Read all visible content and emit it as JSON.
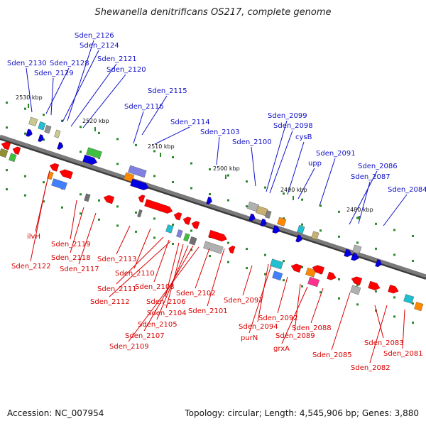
{
  "title": "Shewanella denitrificans OS217, complete genome",
  "accession": "Accession: NC_007954",
  "summary": "Topology: circular; Length: 4,545,906 bp; Genes: 3,880",
  "ruler": [
    "2530 kbp",
    "2520 kbp",
    "2510 kbp",
    "2500 kbp",
    "2490 kbp",
    "2480 kbp"
  ],
  "colors": {
    "label_top": "#1010c8",
    "label_bottom": "#d80000",
    "backbone": "#7a7a7a"
  },
  "top_labels": [
    {
      "text": "Sden_2126"
    },
    {
      "text": "Sden_2124"
    },
    {
      "text": "Sden_2130"
    },
    {
      "text": "Sden_2128"
    },
    {
      "text": "Sden_2121"
    },
    {
      "text": "Sden_2129"
    },
    {
      "text": "Sden_2120"
    },
    {
      "text": "Sden_2115"
    },
    {
      "text": "Sden_2116"
    },
    {
      "text": "Sden_2114"
    },
    {
      "text": "Sden_2103"
    },
    {
      "text": "Sden_2099"
    },
    {
      "text": "Sden_2098"
    },
    {
      "text": "Sden_2100"
    },
    {
      "text": "cysB"
    },
    {
      "text": "Sden_2091"
    },
    {
      "text": "upp"
    },
    {
      "text": "Sden_2086"
    },
    {
      "text": "Sden_2087"
    },
    {
      "text": "Sden_2084"
    }
  ],
  "bottom_labels": [
    {
      "text": "ilvH"
    },
    {
      "text": "Sden_2119"
    },
    {
      "text": "Sden_2122"
    },
    {
      "text": "Sden_2118"
    },
    {
      "text": "Sden_2117"
    },
    {
      "text": "Sden_2113"
    },
    {
      "text": "Sden_2110"
    },
    {
      "text": "Sden_2111"
    },
    {
      "text": "Sden_2108"
    },
    {
      "text": "Sden_2112"
    },
    {
      "text": "Sden_2106"
    },
    {
      "text": "Sden_2104"
    },
    {
      "text": "Sden_2105"
    },
    {
      "text": "Sden_2107"
    },
    {
      "text": "Sden_2109"
    },
    {
      "text": "Sden_2102"
    },
    {
      "text": "Sden_2101"
    },
    {
      "text": "Sden_2097"
    },
    {
      "text": "Sden_2094"
    },
    {
      "text": "purN"
    },
    {
      "text": "Sden_2092"
    },
    {
      "text": "Sden_2089"
    },
    {
      "text": "grxA"
    },
    {
      "text": "Sden_2088"
    },
    {
      "text": "Sden_2085"
    },
    {
      "text": "Sden_2083"
    },
    {
      "text": "Sden_2082"
    },
    {
      "text": "Sden_2081"
    }
  ]
}
